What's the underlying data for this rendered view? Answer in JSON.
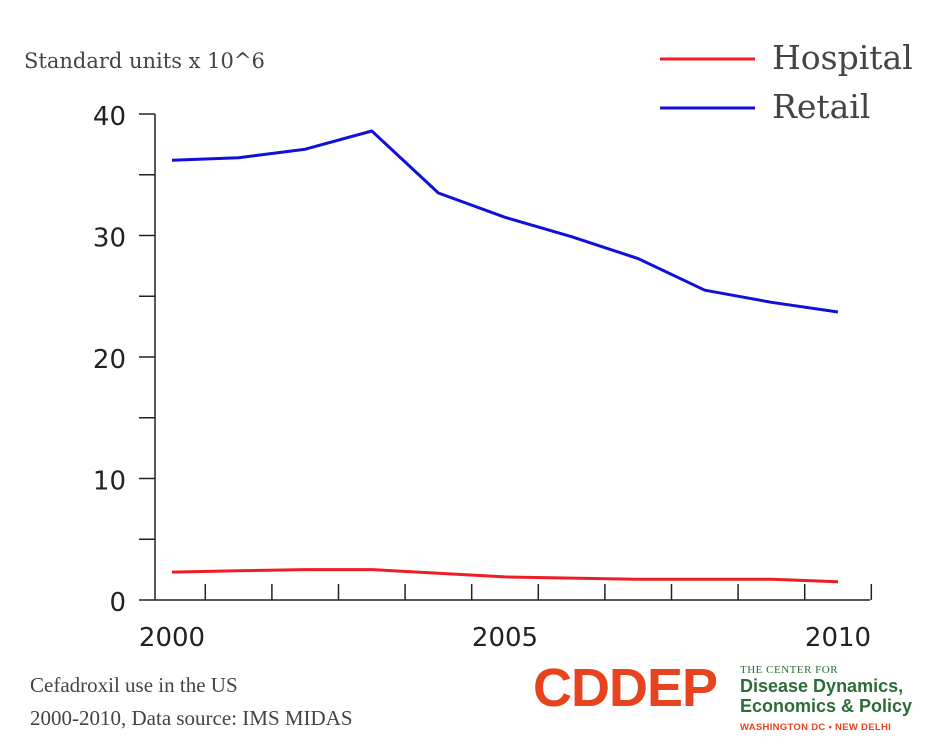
{
  "chart_data": {
    "type": "line",
    "ylabel": "Standard units x 10^6",
    "xlim": [
      2000,
      2010
    ],
    "ylim": [
      0,
      40
    ],
    "y_ticks": [
      0,
      10,
      20,
      30,
      40
    ],
    "x_tick_labels": [
      2000,
      2005,
      2010
    ],
    "grid": false,
    "legend_position": "top-right",
    "x": [
      2000,
      2001,
      2002,
      2003,
      2004,
      2005,
      2006,
      2007,
      2008,
      2009,
      2010
    ],
    "series": [
      {
        "name": "Hospital",
        "color": "#ee1c25",
        "values": [
          2.3,
          2.4,
          2.5,
          2.5,
          2.2,
          1.9,
          1.8,
          1.7,
          1.7,
          1.7,
          1.5
        ]
      },
      {
        "name": "Retail",
        "color": "#1010d8",
        "values": [
          36.2,
          36.4,
          37.1,
          38.6,
          33.5,
          31.5,
          29.9,
          28.1,
          25.5,
          24.5,
          23.7
        ]
      }
    ]
  },
  "caption": {
    "line1": "Cefadroxil use in the US",
    "line2": "2000-2010, Data source: IMS MIDAS"
  },
  "logo": {
    "mark": "CDDEP",
    "small": "THE CENTER FOR",
    "line1": "Disease Dynamics,",
    "line2": "Economics & Policy",
    "foot": "WASHINGTON DC • NEW DELHI"
  }
}
